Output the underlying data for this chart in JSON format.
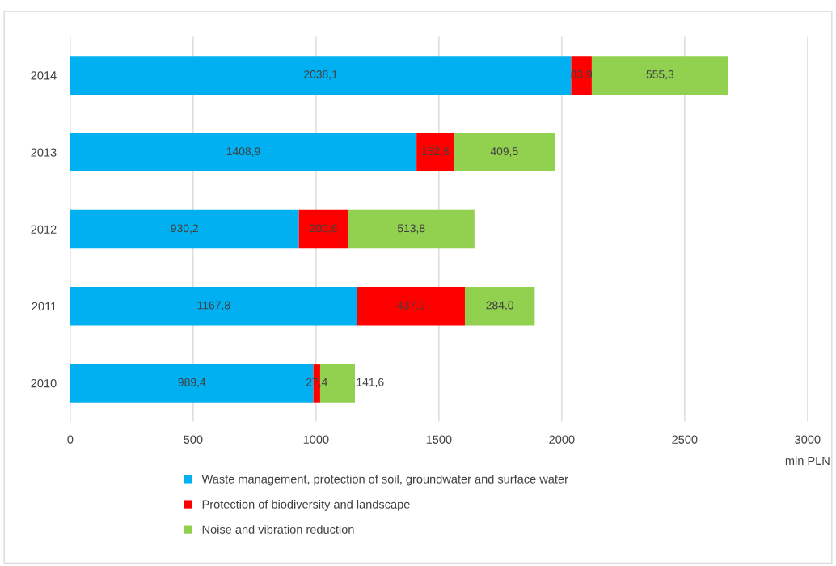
{
  "chart_data": {
    "type": "bar",
    "orientation": "horizontal",
    "stacked": true,
    "categories": [
      "2014",
      "2013",
      "2012",
      "2011",
      "2010"
    ],
    "series": [
      {
        "name": "Waste management, protection of soil, groundwater and surface water",
        "color": "#00b0f0",
        "values": [
          2038.1,
          1408.9,
          930.2,
          1167.8,
          989.4
        ],
        "value_labels": [
          "2038,1",
          "1408,9",
          "930,2",
          "1167,8",
          "989,4"
        ]
      },
      {
        "name": "Protection of biodiversity and landscape",
        "color": "#ff0000",
        "values": [
          83.9,
          152.6,
          200.6,
          437.9,
          27.4
        ],
        "value_labels": [
          "83,9",
          "152,6",
          "200,6",
          "437,9",
          "27,4"
        ]
      },
      {
        "name": "Noise and vibration reduction",
        "color": "#92d050",
        "values": [
          555.3,
          409.5,
          513.8,
          284.0,
          141.6
        ],
        "value_labels": [
          "555,3",
          "409,5",
          "513,8",
          "284,0",
          "141,6"
        ]
      }
    ],
    "xlabel": "mln PLN",
    "xlim": [
      0,
      3000
    ],
    "xticks": [
      0,
      500,
      1000,
      1500,
      2000,
      2500,
      3000
    ],
    "grid": "x",
    "legend": "bottom"
  }
}
